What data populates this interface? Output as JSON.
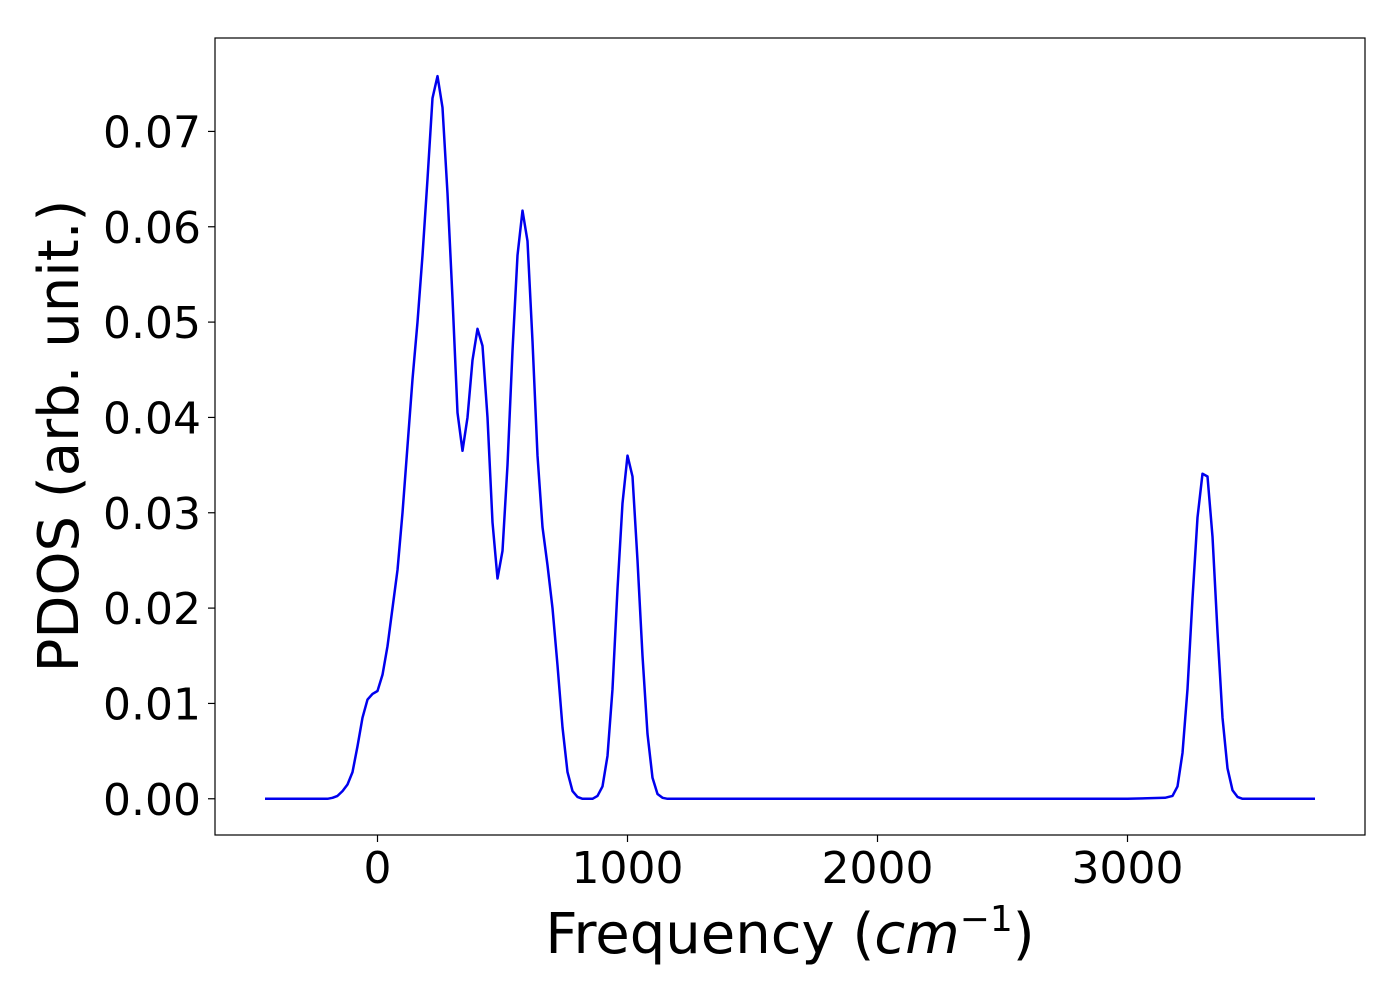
{
  "chart_data": {
    "type": "line",
    "xlabel": "Frequency (cm^-1)",
    "xlabel_parts": {
      "prefix": "Frequency (",
      "var": "cm",
      "sup": "−1",
      "suffix": ")"
    },
    "ylabel": "PDOS (arb. unit.)",
    "xlim": [
      -650,
      3950
    ],
    "ylim": [
      -0.0038,
      0.0798
    ],
    "xticks": [
      0,
      1000,
      2000,
      3000
    ],
    "xtick_labels": [
      "0",
      "1000",
      "2000",
      "3000"
    ],
    "yticks": [
      0.0,
      0.01,
      0.02,
      0.03,
      0.04,
      0.05,
      0.06,
      0.07
    ],
    "ytick_labels": [
      "0.00",
      "0.01",
      "0.02",
      "0.03",
      "0.04",
      "0.05",
      "0.06",
      "0.07"
    ],
    "grid": false,
    "series": [
      {
        "color": "#0000ee",
        "x": [
          -450,
          -250,
          -200,
          -180,
          -160,
          -140,
          -120,
          -100,
          -80,
          -60,
          -40,
          -20,
          0,
          20,
          40,
          60,
          80,
          100,
          120,
          140,
          160,
          180,
          200,
          220,
          240,
          260,
          280,
          300,
          320,
          340,
          360,
          380,
          400,
          420,
          440,
          460,
          480,
          500,
          520,
          540,
          560,
          580,
          600,
          620,
          640,
          660,
          680,
          700,
          720,
          740,
          760,
          780,
          800,
          820,
          840,
          860,
          880,
          900,
          920,
          940,
          960,
          980,
          1000,
          1020,
          1040,
          1060,
          1080,
          1100,
          1120,
          1140,
          1160,
          1180,
          1200,
          1220,
          1300,
          3000,
          3150,
          3180,
          3200,
          3220,
          3240,
          3260,
          3280,
          3300,
          3320,
          3340,
          3360,
          3380,
          3400,
          3420,
          3440,
          3460,
          3480,
          3500,
          3550,
          3600,
          3750
        ],
        "y": [
          0.0,
          0.0,
          0.0,
          0.0001,
          0.0003,
          0.0008,
          0.0015,
          0.0028,
          0.0055,
          0.0085,
          0.0104,
          0.011,
          0.0113,
          0.013,
          0.016,
          0.02,
          0.024,
          0.03,
          0.037,
          0.044,
          0.05,
          0.057,
          0.065,
          0.0735,
          0.0758,
          0.0725,
          0.0635,
          0.0525,
          0.0405,
          0.0365,
          0.04,
          0.046,
          0.0493,
          0.0475,
          0.04,
          0.029,
          0.0231,
          0.026,
          0.035,
          0.047,
          0.057,
          0.0617,
          0.0585,
          0.048,
          0.036,
          0.0285,
          0.0245,
          0.02,
          0.014,
          0.0075,
          0.0028,
          0.0008,
          0.0002,
          0.0,
          0.0,
          0.0,
          0.0003,
          0.0013,
          0.0045,
          0.0115,
          0.022,
          0.031,
          0.036,
          0.0338,
          0.025,
          0.015,
          0.0068,
          0.0022,
          0.0005,
          0.0001,
          0.0,
          0.0,
          0.0,
          0.0,
          0.0,
          0.0,
          0.0001,
          0.0003,
          0.0013,
          0.0048,
          0.0115,
          0.021,
          0.0295,
          0.0341,
          0.0338,
          0.0275,
          0.0175,
          0.0085,
          0.0032,
          0.0009,
          0.0002,
          0.0,
          0.0,
          0.0,
          0.0,
          0.0,
          0.0
        ]
      }
    ]
  }
}
